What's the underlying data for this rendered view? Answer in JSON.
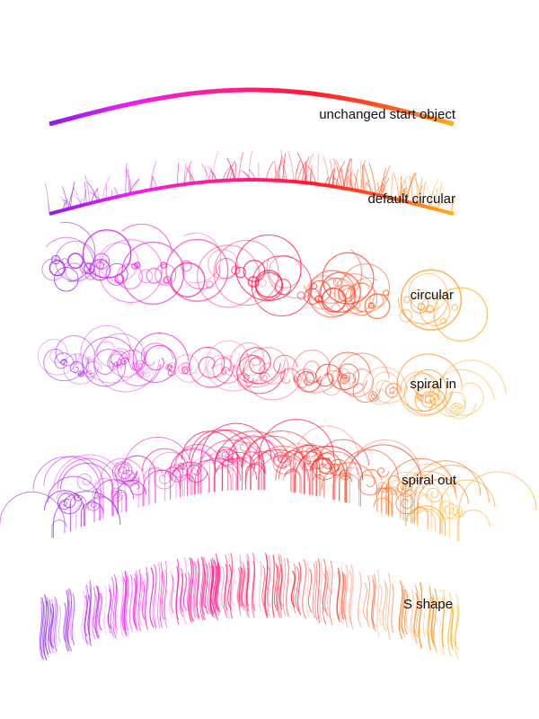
{
  "palette": [
    "#8a1cf2",
    "#ee1eee",
    "#ff1d8a",
    "#ff1a2e",
    "#ff5e22",
    "#ffad1c"
  ],
  "examples": [
    {
      "id": "unchanged",
      "label": "unchanged start object",
      "style": "plain-stroke"
    },
    {
      "id": "default-circular",
      "label": "default circular",
      "style": "hairs-on-stroke"
    },
    {
      "id": "circular",
      "label": "circular",
      "style": "circles"
    },
    {
      "id": "spiral-in",
      "label": "spiral in",
      "style": "spirals-in"
    },
    {
      "id": "spiral-out",
      "label": "spiral out",
      "style": "spirals-out"
    },
    {
      "id": "s-shape",
      "label": "S shape",
      "style": "s-strokes"
    }
  ]
}
